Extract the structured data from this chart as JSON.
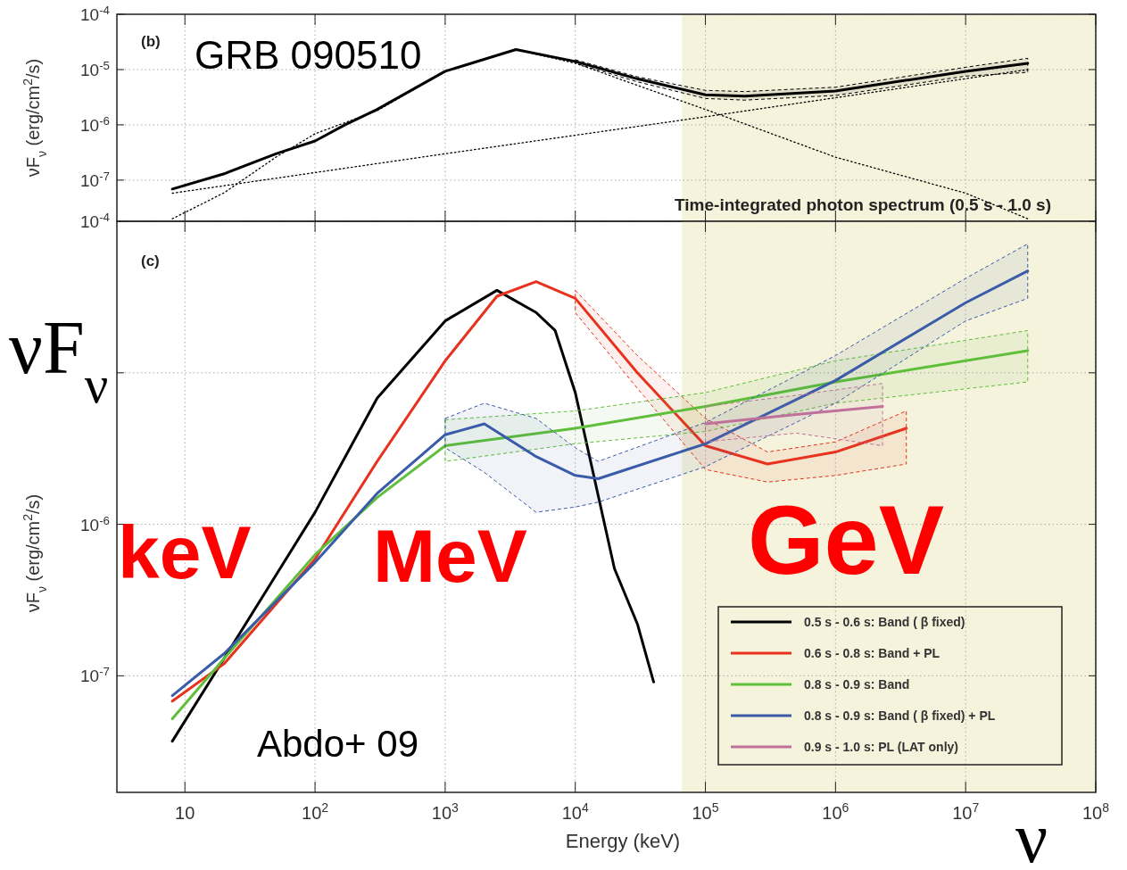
{
  "chart_data": [
    {
      "type": "line",
      "ylabel": "νF$_{ν}$ (erg/cm$^{2}$/s)",
      "log": "xy",
      "grid": true,
      "legend": false,
      "tick_labels": "y",
      "xlim": [
        3,
        100000000
      ],
      "ylim": [
        1.8e-08,
        0.0001
      ],
      "xticks": [
        {
          "value": 10,
          "label": null
        },
        {
          "value": 100,
          "label": null
        },
        {
          "value": 1000,
          "label": null
        },
        {
          "value": 10000,
          "label": null
        },
        {
          "value": 100000,
          "label": null
        },
        {
          "value": 1000000,
          "label": null
        },
        {
          "value": 10000000,
          "label": null
        },
        {
          "value": 100000000,
          "label": null
        }
      ],
      "yticks": [
        {
          "value": 1e-07,
          "label": "10$^{-7}$"
        },
        {
          "value": 1e-06,
          "label": "10$^{-6}$"
        },
        {
          "value": 1e-05,
          "label": "10$^{-5}$"
        },
        {
          "value": 0.0001,
          "label": "10$^{-4}$"
        }
      ],
      "bands": [
        {
          "axis": "x",
          "from": 66000,
          "to": 100000000,
          "color": "#f5f3dc"
        }
      ],
      "annotations": [
        "(b)",
        "GRB 090510",
        "Time-integrated photon spectrum (0.5 s - 1.0 s)"
      ],
      "series": [
        {
          "color": "#000000",
          "line_style": "solid",
          "x": [
            8,
            20,
            50,
            100,
            170,
            300,
            1000,
            3500,
            10000,
            30000,
            100000,
            200000,
            1000000,
            10000000,
            30000000
          ],
          "values": [
            6.9e-08,
            1.3e-07,
            3e-07,
            5.1e-07,
            1e-06,
            1.9e-06,
            9.3e-06,
            2.3e-05,
            1.4e-05,
            6.8e-06,
            3.5e-06,
            3.3e-06,
            4.1e-06,
            9.3e-06,
            1.3e-05
          ],
          "upper": [
            null,
            null,
            null,
            null,
            null,
            null,
            null,
            null,
            1.5e-05,
            7.4e-06,
            4.2e-06,
            4e-06,
            4.8e-06,
            1.1e-05,
            1.6e-05
          ],
          "lower": [
            null,
            null,
            null,
            null,
            null,
            null,
            null,
            null,
            1.3e-05,
            6e-06,
            3e-06,
            2.8e-06,
            3.4e-06,
            7.6e-06,
            8.9e-06
          ]
        },
        {
          "color": "#000000",
          "line_style": "dotted",
          "x": [
            8,
            1000,
            100000,
            30000000
          ],
          "values": [
            5.8e-08,
            3e-07,
            1.4e-06,
            1e-05
          ]
        },
        {
          "color": "#000000",
          "line_style": "dotted",
          "x": [
            8,
            20,
            50,
            100,
            300,
            1000,
            3500,
            10000,
            100000,
            1000000,
            10000000,
            30000000
          ],
          "values": [
            2e-08,
            5.9e-08,
            2.6e-07,
            6.9e-07,
            1.8e-06,
            9.3e-06,
            2.3e-05,
            1.3e-05,
            1.9e-06,
            2.6e-07,
            5.8e-08,
            2e-08
          ]
        }
      ]
    },
    {
      "type": "line",
      "xlabel": "Energy (keV)",
      "ylabel": "νF$_{ν}$ (erg/cm$^{2}$/s)",
      "log": "xy",
      "grid": true,
      "legend": "bottom right",
      "line_style": "solid",
      "xlim": [
        3,
        100000000
      ],
      "ylim": [
        1.7e-08,
        0.0001
      ],
      "xticks": [
        10,
        {
          "value": 100,
          "label": "10$^{2}$"
        },
        {
          "value": 1000,
          "label": "10$^{3}$"
        },
        {
          "value": 10000,
          "label": "10$^{4}$"
        },
        {
          "value": 100000,
          "label": "10$^{5}$"
        },
        {
          "value": 1000000,
          "label": "10$^{6}$"
        },
        {
          "value": 10000000,
          "label": "10$^{7}$"
        },
        {
          "value": 100000000,
          "label": "10$^{8}$"
        }
      ],
      "yticks": [
        {
          "value": 1e-07,
          "label": "10$^{-7}$"
        },
        {
          "value": 1e-06,
          "label": "10$^{-6}$"
        },
        {
          "value": 1e-05,
          "label": null
        },
        {
          "value": 0.0001,
          "label": "10$^{-4}$"
        }
      ],
      "bands": [
        {
          "axis": "x",
          "from": 66000,
          "to": 100000000,
          "color": "#f5f3dc"
        }
      ],
      "annotations": [
        "(c)",
        "νF$_{ν}$",
        "keV",
        "MeV",
        "GeV",
        "Abdo+ 09",
        "ν"
      ],
      "series": [
        {
          "name": "0.5 s - 0.6 s: Band ( β fixed)",
          "color": "#000000",
          "x": [
            8,
            20,
            50,
            100,
            300,
            1000,
            2500,
            5000,
            7000,
            10000,
            20000,
            30000,
            40000
          ],
          "values": [
            3.7e-08,
            1.3e-07,
            4.6e-07,
            1.2e-06,
            6.8e-06,
            2.2e-05,
            3.5e-05,
            2.5e-05,
            1.9e-05,
            7.4e-06,
            5.1e-07,
            2.2e-07,
            9.1e-08
          ]
        },
        {
          "name": "0.6 s - 0.8 s: Band + PL",
          "color": "#e8321e",
          "x": [
            8,
            20,
            100,
            300,
            1000,
            2500,
            5000,
            10000,
            30000,
            100000,
            300000,
            1000000,
            3500000
          ],
          "values": [
            6.8e-08,
            1.2e-07,
            5.9e-07,
            2.6e-06,
            1.2e-05,
            3.2e-05,
            4e-05,
            3.1e-05,
            1e-05,
            3.3e-06,
            2.5e-06,
            3e-06,
            4.3e-06
          ],
          "upper": [
            null,
            null,
            null,
            null,
            null,
            null,
            null,
            3.5e-05,
            1.3e-05,
            5e-06,
            3e-06,
            3.5e-06,
            5.6e-06
          ],
          "lower": [
            null,
            null,
            null,
            null,
            null,
            null,
            null,
            2.5e-05,
            7.9e-06,
            2.3e-06,
            1.9e-06,
            2.1e-06,
            2.5e-06
          ]
        },
        {
          "name": "0.8 s - 0.9 s: Band",
          "color": "#5fbf3a",
          "x": [
            8,
            20,
            100,
            300,
            1000,
            10000,
            100000,
            1000000,
            30000000
          ],
          "values": [
            5.2e-08,
            1.3e-07,
            6.3e-07,
            1.5e-06,
            3.3e-06,
            4.3e-06,
            6e-06,
            8.7e-06,
            1.4e-05
          ],
          "upper": [
            null,
            null,
            null,
            null,
            4.9e-06,
            5.6e-06,
            7.4e-06,
            1.2e-05,
            1.9e-05
          ],
          "lower": [
            null,
            null,
            null,
            null,
            2.6e-06,
            3.4e-06,
            4.1e-06,
            6.3e-06,
            8.7e-06
          ]
        },
        {
          "name": "0.8 s - 0.9 s: Band ( β fixed) + PL",
          "color": "#3a5ca8",
          "x": [
            8,
            20,
            100,
            300,
            1000,
            2000,
            5000,
            10000,
            15000,
            100000,
            1000000,
            10000000,
            30000000
          ],
          "values": [
            7.4e-08,
            1.4e-07,
            5.6e-07,
            1.6e-06,
            3.9e-06,
            4.6e-06,
            2.8e-06,
            2.1e-06,
            2e-06,
            3.4e-06,
            8.9e-06,
            2.9e-05,
            4.7e-05
          ],
          "upper": [
            null,
            null,
            null,
            null,
            5e-06,
            6.3e-06,
            5e-06,
            3.2e-06,
            2.6e-06,
            4.7e-06,
            1.3e-05,
            4.2e-05,
            7.1e-05
          ],
          "lower": [
            null,
            null,
            null,
            null,
            3.2e-06,
            2.2e-06,
            1.2e-06,
            1.3e-06,
            1.4e-06,
            2.4e-06,
            6.3e-06,
            2.2e-05,
            3.1e-05
          ]
        },
        {
          "name": "0.9 s - 1.0 s: PL (LAT only)",
          "color": "#c0719a",
          "x": [
            100000,
            500000,
            2300000
          ],
          "values": [
            4.6e-06,
            5.3e-06,
            6e-06
          ],
          "upper": [
            6e-06,
            7.1e-06,
            8.5e-06
          ],
          "lower": [
            3.5e-06,
            4e-06,
            3.3e-06
          ]
        }
      ]
    }
  ]
}
